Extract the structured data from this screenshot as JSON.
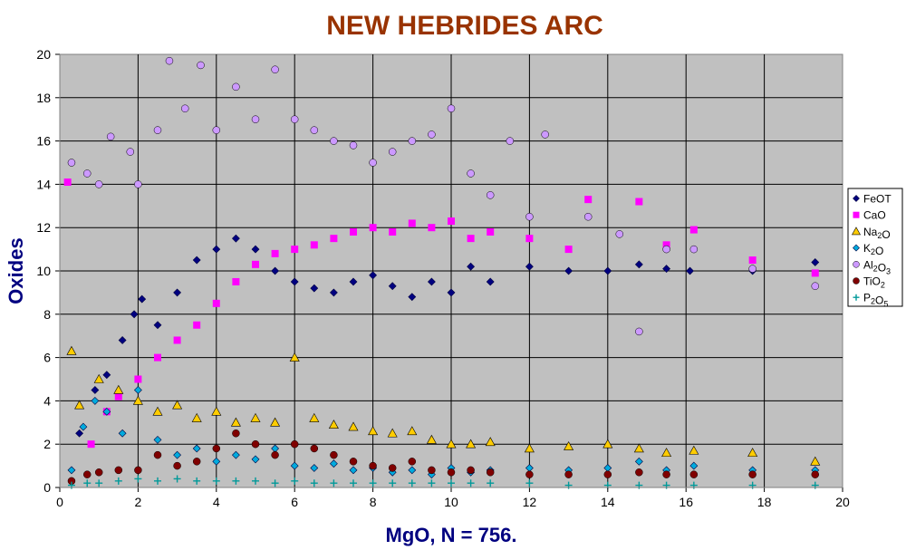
{
  "chart_data": {
    "type": "scatter",
    "title": "NEW HEBRIDES ARC",
    "xlabel": "MgO, N = 756.",
    "ylabel": "Oxides",
    "xlim": [
      0,
      20
    ],
    "ylim": [
      0,
      20
    ],
    "xticks": [
      "0",
      "2",
      "4",
      "6",
      "8",
      "10",
      "12",
      "14",
      "16",
      "18",
      "20"
    ],
    "yticks": [
      "0",
      "2",
      "4",
      "6",
      "8",
      "10",
      "12",
      "14",
      "16",
      "18",
      "20"
    ],
    "grid": true,
    "legend_position": "right",
    "colors": {
      "title": "#993300",
      "axis_label": "#000080",
      "plot_background": "#c0c0c0",
      "grid": "#000000"
    },
    "series": [
      {
        "name": "FeOT",
        "legend_label": {
          "base": "FeOT",
          "sub": ""
        },
        "marker": "diamond",
        "color": "#000080",
        "points": [
          [
            0.5,
            2.5
          ],
          [
            0.9,
            4.5
          ],
          [
            1.2,
            5.2
          ],
          [
            1.6,
            6.8
          ],
          [
            1.9,
            8.0
          ],
          [
            2.1,
            8.7
          ],
          [
            2.5,
            7.5
          ],
          [
            3.0,
            9.0
          ],
          [
            3.5,
            10.5
          ],
          [
            4.0,
            11.0
          ],
          [
            4.5,
            11.5
          ],
          [
            5.0,
            11.0
          ],
          [
            5.5,
            10.0
          ],
          [
            6.0,
            9.5
          ],
          [
            6.5,
            9.2
          ],
          [
            7.0,
            9.0
          ],
          [
            7.5,
            9.5
          ],
          [
            8.0,
            9.8
          ],
          [
            8.5,
            9.3
          ],
          [
            9.0,
            8.8
          ],
          [
            9.5,
            9.5
          ],
          [
            10.0,
            9.0
          ],
          [
            10.5,
            10.2
          ],
          [
            11.0,
            9.5
          ],
          [
            12.0,
            10.2
          ],
          [
            13.0,
            10.0
          ],
          [
            14.0,
            10.0
          ],
          [
            14.8,
            10.3
          ],
          [
            15.5,
            10.1
          ],
          [
            16.1,
            10.0
          ],
          [
            17.7,
            10.0
          ],
          [
            19.3,
            10.4
          ]
        ]
      },
      {
        "name": "CaO",
        "legend_label": {
          "base": "CaO",
          "sub": ""
        },
        "marker": "square",
        "color": "#ff00ff",
        "points": [
          [
            0.2,
            14.1
          ],
          [
            0.8,
            2.0
          ],
          [
            1.2,
            3.5
          ],
          [
            1.5,
            4.2
          ],
          [
            2.0,
            5.0
          ],
          [
            2.5,
            6.0
          ],
          [
            3.0,
            6.8
          ],
          [
            3.5,
            7.5
          ],
          [
            4.0,
            8.5
          ],
          [
            4.5,
            9.5
          ],
          [
            5.0,
            10.3
          ],
          [
            5.5,
            10.8
          ],
          [
            6.0,
            11.0
          ],
          [
            6.5,
            11.2
          ],
          [
            7.0,
            11.5
          ],
          [
            7.5,
            11.8
          ],
          [
            8.0,
            12.0
          ],
          [
            8.5,
            11.8
          ],
          [
            9.0,
            12.2
          ],
          [
            9.5,
            12.0
          ],
          [
            10.0,
            12.3
          ],
          [
            10.5,
            11.5
          ],
          [
            11.0,
            11.8
          ],
          [
            12.0,
            11.5
          ],
          [
            13.0,
            11.0
          ],
          [
            13.5,
            13.3
          ],
          [
            14.8,
            13.2
          ],
          [
            15.5,
            11.2
          ],
          [
            16.2,
            11.9
          ],
          [
            17.7,
            10.5
          ],
          [
            19.3,
            9.9
          ]
        ]
      },
      {
        "name": "Na2O",
        "legend_label": {
          "base": "Na",
          "sub": "2",
          "tail": "O"
        },
        "marker": "triangle",
        "color": "#ffcc00",
        "points": [
          [
            0.3,
            6.3
          ],
          [
            0.5,
            3.8
          ],
          [
            1.0,
            5.0
          ],
          [
            1.5,
            4.5
          ],
          [
            2.0,
            4.0
          ],
          [
            2.5,
            3.5
          ],
          [
            3.0,
            3.8
          ],
          [
            3.5,
            3.2
          ],
          [
            4.0,
            3.5
          ],
          [
            4.5,
            3.0
          ],
          [
            5.0,
            3.2
          ],
          [
            5.5,
            3.0
          ],
          [
            6.0,
            6.0
          ],
          [
            6.5,
            3.2
          ],
          [
            7.0,
            2.9
          ],
          [
            7.5,
            2.8
          ],
          [
            8.0,
            2.6
          ],
          [
            8.5,
            2.5
          ],
          [
            9.0,
            2.6
          ],
          [
            9.5,
            2.2
          ],
          [
            10.0,
            2.0
          ],
          [
            10.5,
            2.0
          ],
          [
            11.0,
            2.1
          ],
          [
            12.0,
            1.8
          ],
          [
            13.0,
            1.9
          ],
          [
            14.0,
            2.0
          ],
          [
            14.8,
            1.8
          ],
          [
            15.5,
            1.6
          ],
          [
            16.2,
            1.7
          ],
          [
            17.7,
            1.6
          ],
          [
            19.3,
            1.2
          ]
        ]
      },
      {
        "name": "K2O",
        "legend_label": {
          "base": "K",
          "sub": "2",
          "tail": "O"
        },
        "marker": "diamond",
        "color": "#00aadd",
        "points": [
          [
            0.3,
            0.8
          ],
          [
            0.6,
            2.8
          ],
          [
            0.9,
            4.0
          ],
          [
            1.2,
            3.5
          ],
          [
            1.6,
            2.5
          ],
          [
            2.0,
            4.5
          ],
          [
            2.5,
            2.2
          ],
          [
            3.0,
            1.5
          ],
          [
            3.5,
            1.8
          ],
          [
            4.0,
            1.2
          ],
          [
            4.5,
            1.5
          ],
          [
            5.0,
            1.3
          ],
          [
            5.5,
            1.8
          ],
          [
            6.0,
            1.0
          ],
          [
            6.5,
            0.9
          ],
          [
            7.0,
            1.1
          ],
          [
            7.5,
            0.8
          ],
          [
            8.0,
            0.9
          ],
          [
            8.5,
            0.7
          ],
          [
            9.0,
            0.8
          ],
          [
            9.5,
            0.6
          ],
          [
            10.0,
            0.9
          ],
          [
            10.5,
            0.7
          ],
          [
            11.0,
            0.8
          ],
          [
            12.0,
            0.9
          ],
          [
            13.0,
            0.8
          ],
          [
            14.0,
            0.9
          ],
          [
            14.8,
            1.2
          ],
          [
            15.5,
            0.8
          ],
          [
            16.2,
            1.0
          ],
          [
            17.7,
            0.8
          ],
          [
            19.3,
            0.8
          ]
        ]
      },
      {
        "name": "Al2O3",
        "legend_label": {
          "base": "Al",
          "sub": "2",
          "tail": "O",
          "sub2": "3"
        },
        "marker": "circle",
        "color": "#cc99ff",
        "points": [
          [
            0.3,
            15.0
          ],
          [
            0.7,
            14.5
          ],
          [
            1.0,
            14.0
          ],
          [
            1.3,
            16.2
          ],
          [
            1.8,
            15.5
          ],
          [
            2.0,
            14.0
          ],
          [
            2.5,
            16.5
          ],
          [
            2.8,
            19.7
          ],
          [
            3.2,
            17.5
          ],
          [
            3.6,
            19.5
          ],
          [
            4.0,
            16.5
          ],
          [
            4.5,
            18.5
          ],
          [
            5.0,
            17.0
          ],
          [
            5.5,
            19.3
          ],
          [
            6.0,
            17.0
          ],
          [
            6.5,
            16.5
          ],
          [
            7.0,
            16.0
          ],
          [
            7.5,
            15.8
          ],
          [
            8.0,
            15.0
          ],
          [
            8.5,
            15.5
          ],
          [
            9.0,
            16.0
          ],
          [
            9.5,
            16.3
          ],
          [
            10.0,
            17.5
          ],
          [
            10.5,
            14.5
          ],
          [
            11.0,
            13.5
          ],
          [
            11.5,
            16.0
          ],
          [
            12.0,
            12.5
          ],
          [
            12.4,
            16.3
          ],
          [
            13.5,
            12.5
          ],
          [
            14.3,
            11.7
          ],
          [
            14.8,
            7.2
          ],
          [
            15.5,
            11.0
          ],
          [
            16.2,
            11.0
          ],
          [
            17.7,
            10.1
          ],
          [
            19.3,
            9.3
          ]
        ]
      },
      {
        "name": "TiO2",
        "legend_label": {
          "base": "TiO",
          "sub": "2",
          "tail": ""
        },
        "marker": "circle",
        "color": "#800000",
        "points": [
          [
            0.3,
            0.3
          ],
          [
            0.7,
            0.6
          ],
          [
            1.0,
            0.7
          ],
          [
            1.5,
            0.8
          ],
          [
            2.0,
            0.8
          ],
          [
            2.5,
            1.5
          ],
          [
            3.0,
            1.0
          ],
          [
            3.5,
            1.2
          ],
          [
            4.0,
            1.8
          ],
          [
            4.5,
            2.5
          ],
          [
            5.0,
            2.0
          ],
          [
            5.5,
            1.5
          ],
          [
            6.0,
            2.0
          ],
          [
            6.5,
            1.8
          ],
          [
            7.0,
            1.5
          ],
          [
            7.5,
            1.2
          ],
          [
            8.0,
            1.0
          ],
          [
            8.5,
            0.9
          ],
          [
            9.0,
            1.2
          ],
          [
            9.5,
            0.8
          ],
          [
            10.0,
            0.7
          ],
          [
            10.5,
            0.8
          ],
          [
            11.0,
            0.7
          ],
          [
            12.0,
            0.6
          ],
          [
            13.0,
            0.6
          ],
          [
            14.0,
            0.6
          ],
          [
            14.8,
            0.7
          ],
          [
            15.5,
            0.6
          ],
          [
            16.2,
            0.6
          ],
          [
            17.7,
            0.6
          ],
          [
            19.3,
            0.6
          ]
        ]
      },
      {
        "name": "P2O5",
        "legend_label": {
          "base": "P",
          "sub": "2",
          "tail": "O",
          "sub2": "5"
        },
        "marker": "plus",
        "color": "#009999",
        "points": [
          [
            0.3,
            0.1
          ],
          [
            0.7,
            0.2
          ],
          [
            1.0,
            0.2
          ],
          [
            1.5,
            0.3
          ],
          [
            2.0,
            0.4
          ],
          [
            2.5,
            0.3
          ],
          [
            3.0,
            0.4
          ],
          [
            3.5,
            0.3
          ],
          [
            4.0,
            0.3
          ],
          [
            4.5,
            0.3
          ],
          [
            5.0,
            0.3
          ],
          [
            5.5,
            0.2
          ],
          [
            6.0,
            0.3
          ],
          [
            6.5,
            0.2
          ],
          [
            7.0,
            0.2
          ],
          [
            7.5,
            0.2
          ],
          [
            8.0,
            0.2
          ],
          [
            8.5,
            0.2
          ],
          [
            9.0,
            0.2
          ],
          [
            9.5,
            0.2
          ],
          [
            10.0,
            0.2
          ],
          [
            10.5,
            0.2
          ],
          [
            11.0,
            0.2
          ],
          [
            12.0,
            0.2
          ],
          [
            13.0,
            0.1
          ],
          [
            14.0,
            0.1
          ],
          [
            14.8,
            0.1
          ],
          [
            15.5,
            0.1
          ],
          [
            16.2,
            0.1
          ],
          [
            17.7,
            0.1
          ],
          [
            19.3,
            0.1
          ]
        ]
      }
    ]
  }
}
